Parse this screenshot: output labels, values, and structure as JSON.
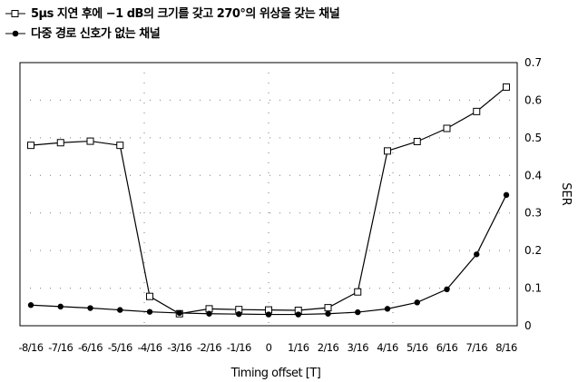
{
  "chart_data": {
    "type": "line",
    "title": "",
    "xlabel": "Timing offset [T]",
    "ylabel": "SER",
    "categories": [
      "-8/16",
      "-7/16",
      "-6/16",
      "-5/16",
      "-4/16",
      "-3/16",
      "-2/16",
      "-1/16",
      "0",
      "1/16",
      "2/16",
      "3/16",
      "4/16",
      "5/16",
      "6/16",
      "7/16",
      "8/16"
    ],
    "ylim": [
      0,
      0.7
    ],
    "yticks": [
      "0",
      "0.1",
      "0.2",
      "0.3",
      "0.4",
      "0.5",
      "0.6",
      "0.7"
    ],
    "grid": "dotted",
    "legend_position": "top-left",
    "series": [
      {
        "name": "5μs 지연 후에 −1 dB의 크기를 갖고 270°의 위상을 갖는 채널",
        "marker": "open-square",
        "values": [
          0.48,
          0.487,
          0.491,
          0.48,
          0.078,
          0.032,
          0.045,
          0.043,
          0.042,
          0.041,
          0.048,
          0.09,
          0.465,
          0.49,
          0.525,
          0.57,
          0.635
        ]
      },
      {
        "name": "다중 경로 신호가 없는 채널",
        "marker": "filled-circle",
        "values": [
          0.055,
          0.051,
          0.047,
          0.042,
          0.037,
          0.034,
          0.032,
          0.031,
          0.03,
          0.03,
          0.032,
          0.036,
          0.045,
          0.062,
          0.097,
          0.19,
          0.348
        ]
      }
    ]
  },
  "colors": {
    "line": "#000000",
    "grid": "#7a7a7a",
    "background": "#ffffff"
  }
}
